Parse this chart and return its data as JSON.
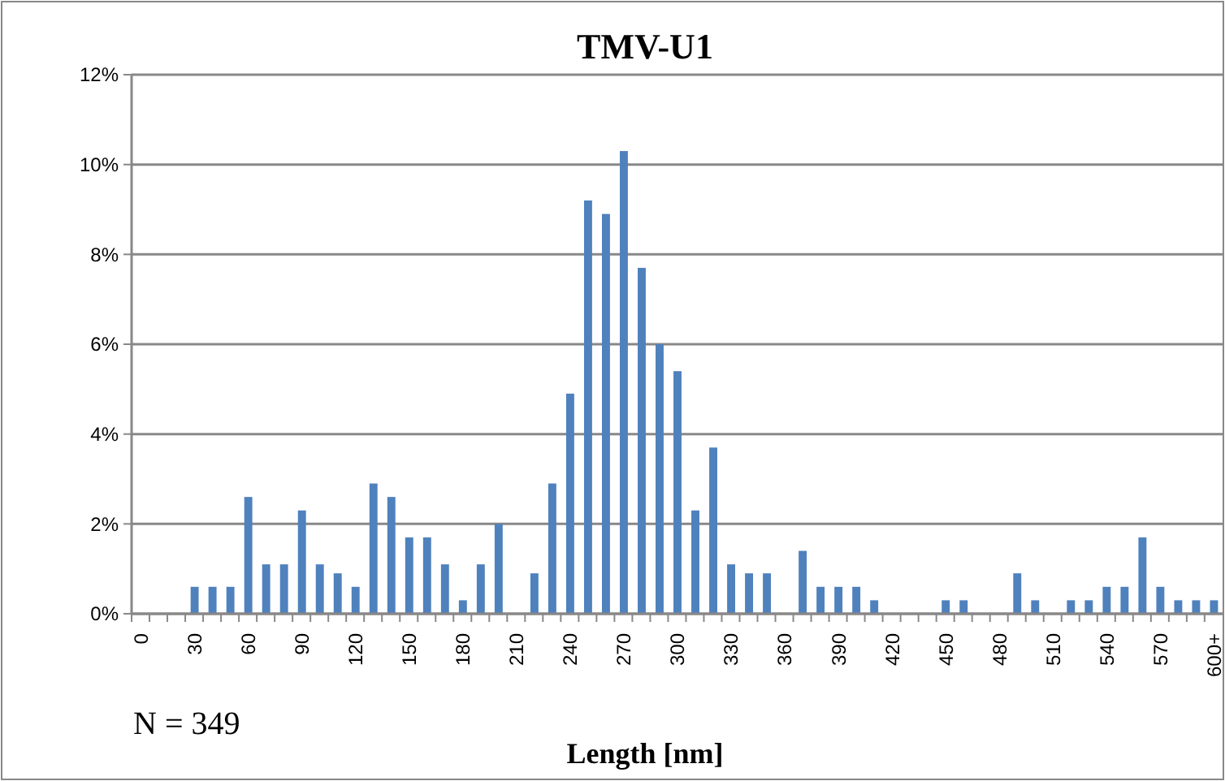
{
  "chart_data": {
    "type": "bar",
    "title": "TMV-U1",
    "xlabel": "Length [nm]",
    "annotations": [
      "N = 349"
    ],
    "categories": [
      "0",
      null,
      null,
      "30",
      null,
      null,
      "60",
      null,
      null,
      "90",
      null,
      null,
      "120",
      null,
      null,
      "150",
      null,
      null,
      "180",
      null,
      null,
      "210",
      null,
      null,
      "240",
      null,
      null,
      "270",
      null,
      null,
      "300",
      null,
      null,
      "330",
      null,
      null,
      "360",
      null,
      null,
      "390",
      null,
      null,
      "420",
      null,
      null,
      "450",
      null,
      null,
      "480",
      null,
      null,
      "510",
      null,
      null,
      "540",
      null,
      null,
      "570",
      null,
      null,
      "600+"
    ],
    "values": [
      0,
      0,
      0,
      0.6,
      0.6,
      0.6,
      2.6,
      1.1,
      1.1,
      2.3,
      1.1,
      0.9,
      0.6,
      2.9,
      2.6,
      1.7,
      1.7,
      1.1,
      0.3,
      1.1,
      2.0,
      0,
      0.9,
      2.9,
      4.9,
      9.2,
      8.9,
      10.3,
      7.7,
      6.0,
      5.4,
      2.3,
      3.7,
      1.1,
      0.9,
      0.9,
      0,
      1.4,
      0.6,
      0.6,
      0.6,
      0.3,
      0,
      0,
      0,
      0.3,
      0.3,
      0,
      0,
      0.9,
      0.3,
      0,
      0.3,
      0.3,
      0.6,
      0.6,
      1.7,
      0.6,
      0.3,
      0.3,
      0.3
    ],
    "color": "#4f81bd",
    "ylim": [
      0,
      12
    ],
    "yticks": [
      {
        "value": 0,
        "label": "0%"
      },
      {
        "value": 2,
        "label": "2%"
      },
      {
        "value": 4,
        "label": "4%"
      },
      {
        "value": 6,
        "label": "6%"
      },
      {
        "value": 8,
        "label": "8%"
      },
      {
        "value": 10,
        "label": "10%"
      },
      {
        "value": 12,
        "label": "12%"
      }
    ],
    "grid": "y"
  }
}
